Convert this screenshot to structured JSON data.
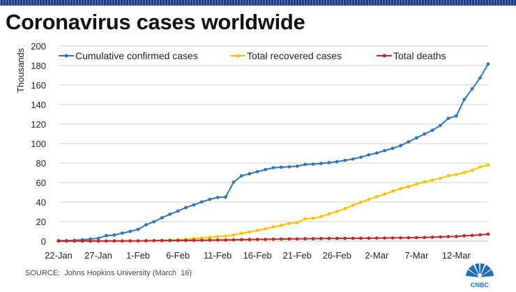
{
  "header": {
    "title": "Coronavirus cases worldwide"
  },
  "footer": {
    "source": "SOURCE:  Johns Hopkins University (March  16)",
    "logo_text": "CNBC"
  },
  "colors": {
    "cumulative": "#2e75b6",
    "recovered": "#ffc000",
    "deaths": "#c0272d",
    "grid": "#d0d0d0",
    "stripe": "#1a3d8f"
  },
  "chart_data": {
    "type": "line",
    "title": "Coronavirus cases worldwide",
    "xlabel": "",
    "ylabel": "Thousands",
    "ylim": [
      0,
      200
    ],
    "yticks": [
      0,
      20,
      40,
      60,
      80,
      100,
      120,
      140,
      160,
      180,
      200
    ],
    "grid": true,
    "legend_position": "top",
    "x_tick_labels": [
      "22-Jan",
      "27-Jan",
      "1-Feb",
      "6-Feb",
      "11-Feb",
      "16-Feb",
      "21-Feb",
      "26-Feb",
      "2-Mar",
      "7-Mar",
      "12-Mar"
    ],
    "x": [
      "22-Jan",
      "23-Jan",
      "24-Jan",
      "25-Jan",
      "26-Jan",
      "27-Jan",
      "28-Jan",
      "29-Jan",
      "30-Jan",
      "31-Jan",
      "1-Feb",
      "2-Feb",
      "3-Feb",
      "4-Feb",
      "5-Feb",
      "6-Feb",
      "7-Feb",
      "8-Feb",
      "9-Feb",
      "10-Feb",
      "11-Feb",
      "12-Feb",
      "13-Feb",
      "14-Feb",
      "15-Feb",
      "16-Feb",
      "17-Feb",
      "18-Feb",
      "19-Feb",
      "20-Feb",
      "21-Feb",
      "22-Feb",
      "23-Feb",
      "24-Feb",
      "25-Feb",
      "26-Feb",
      "27-Feb",
      "28-Feb",
      "29-Feb",
      "1-Mar",
      "2-Mar",
      "3-Mar",
      "4-Mar",
      "5-Mar",
      "6-Mar",
      "7-Mar",
      "8-Mar",
      "9-Mar",
      "10-Mar",
      "11-Mar",
      "12-Mar",
      "13-Mar",
      "14-Mar",
      "15-Mar",
      "16-Mar"
    ],
    "series": [
      {
        "name": "Cumulative confirmed cases",
        "color": "#2e75b6",
        "values": [
          0.6,
          0.6,
          0.9,
          1.4,
          2.1,
          2.9,
          5.6,
          6.2,
          8.2,
          9.9,
          12.0,
          16.8,
          19.9,
          23.9,
          27.6,
          30.8,
          34.4,
          37.1,
          40.2,
          42.8,
          44.8,
          45.2,
          60.4,
          66.9,
          69.0,
          71.2,
          73.3,
          75.2,
          75.7,
          76.2,
          76.8,
          78.6,
          78.9,
          79.6,
          80.4,
          81.4,
          82.8,
          84.1,
          86.0,
          88.4,
          90.3,
          92.8,
          95.1,
          97.9,
          101.8,
          105.8,
          109.8,
          113.6,
          118.6,
          125.9,
          128.3,
          145.2,
          156.1,
          167.4,
          181.5
        ]
      },
      {
        "name": "Total recovered cases",
        "color": "#ffc000",
        "values": [
          0.03,
          0.03,
          0.04,
          0.04,
          0.05,
          0.06,
          0.1,
          0.13,
          0.14,
          0.2,
          0.28,
          0.5,
          0.6,
          0.9,
          1.1,
          1.5,
          2.0,
          2.6,
          3.2,
          3.9,
          4.7,
          5.1,
          6.2,
          8.0,
          9.4,
          10.9,
          12.6,
          14.4,
          16.1,
          18.2,
          18.9,
          22.9,
          23.4,
          25.2,
          27.9,
          30.4,
          33.3,
          36.7,
          39.8,
          42.7,
          45.6,
          48.2,
          51.2,
          53.8,
          55.9,
          58.4,
          60.7,
          62.5,
          64.4,
          67.0,
          68.3,
          70.3,
          72.6,
          76.0,
          78.1
        ]
      },
      {
        "name": "Total deaths",
        "color": "#c0272d",
        "values": [
          0.017,
          0.018,
          0.026,
          0.042,
          0.056,
          0.082,
          0.131,
          0.133,
          0.171,
          0.213,
          0.259,
          0.362,
          0.426,
          0.492,
          0.564,
          0.634,
          0.719,
          0.806,
          0.906,
          1.013,
          1.113,
          1.118,
          1.371,
          1.523,
          1.666,
          1.77,
          1.868,
          2.007,
          2.122,
          2.247,
          2.251,
          2.458,
          2.469,
          2.629,
          2.708,
          2.77,
          2.814,
          2.872,
          2.941,
          2.996,
          3.085,
          3.16,
          3.254,
          3.348,
          3.46,
          3.558,
          3.802,
          3.988,
          4.262,
          4.615,
          4.72,
          5.404,
          5.819,
          6.44,
          7.126
        ]
      }
    ]
  }
}
